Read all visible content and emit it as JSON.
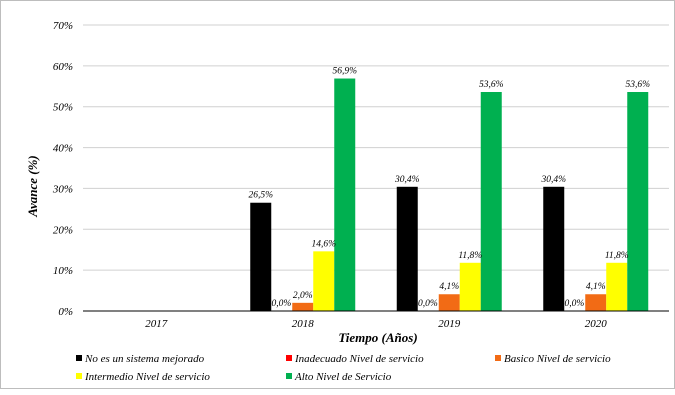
{
  "chart_data": {
    "type": "bar",
    "categories": [
      "2017",
      "2018",
      "2019",
      "2020"
    ],
    "series": [
      {
        "name": "No es un sistema mejorado",
        "color": "#000000",
        "values": [
          null,
          26.5,
          30.4,
          30.4
        ],
        "labels": [
          "",
          "26,5%",
          "30,4%",
          "30,4%"
        ]
      },
      {
        "name": "Inadecuado Nivel de servicio",
        "color": "#ff0000",
        "values": [
          null,
          0.0,
          0.0,
          0.0
        ],
        "labels": [
          "",
          "0,0%",
          "0,0%",
          "0,0%"
        ]
      },
      {
        "name": "Basico Nivel de servicio",
        "color": "#f26b15",
        "values": [
          null,
          2.0,
          4.1,
          4.1
        ],
        "labels": [
          "",
          "2,0%",
          "4,1%",
          "4,1%"
        ]
      },
      {
        "name": "Intermedio Nivel de servicio",
        "color": "#ffff00",
        "values": [
          null,
          14.6,
          11.8,
          11.8
        ],
        "labels": [
          "",
          "14,6%",
          "11,8%",
          "11,8%"
        ]
      },
      {
        "name": "Alto Nivel de Servicio",
        "color": "#00b050",
        "values": [
          null,
          56.9,
          53.6,
          53.6
        ],
        "labels": [
          "",
          "56,9%",
          "53,6%",
          "53,6%"
        ]
      }
    ],
    "ylim": [
      0,
      70
    ],
    "yticks": [
      0,
      10,
      20,
      30,
      40,
      50,
      60,
      70
    ],
    "ytick_labels": [
      "0%",
      "10%",
      "20%",
      "30%",
      "40%",
      "50%",
      "60%",
      "70%"
    ],
    "xlabel": "Tiempo (Años)",
    "ylabel": "Avance (%)",
    "grid": true,
    "legend_position": "bottom"
  }
}
